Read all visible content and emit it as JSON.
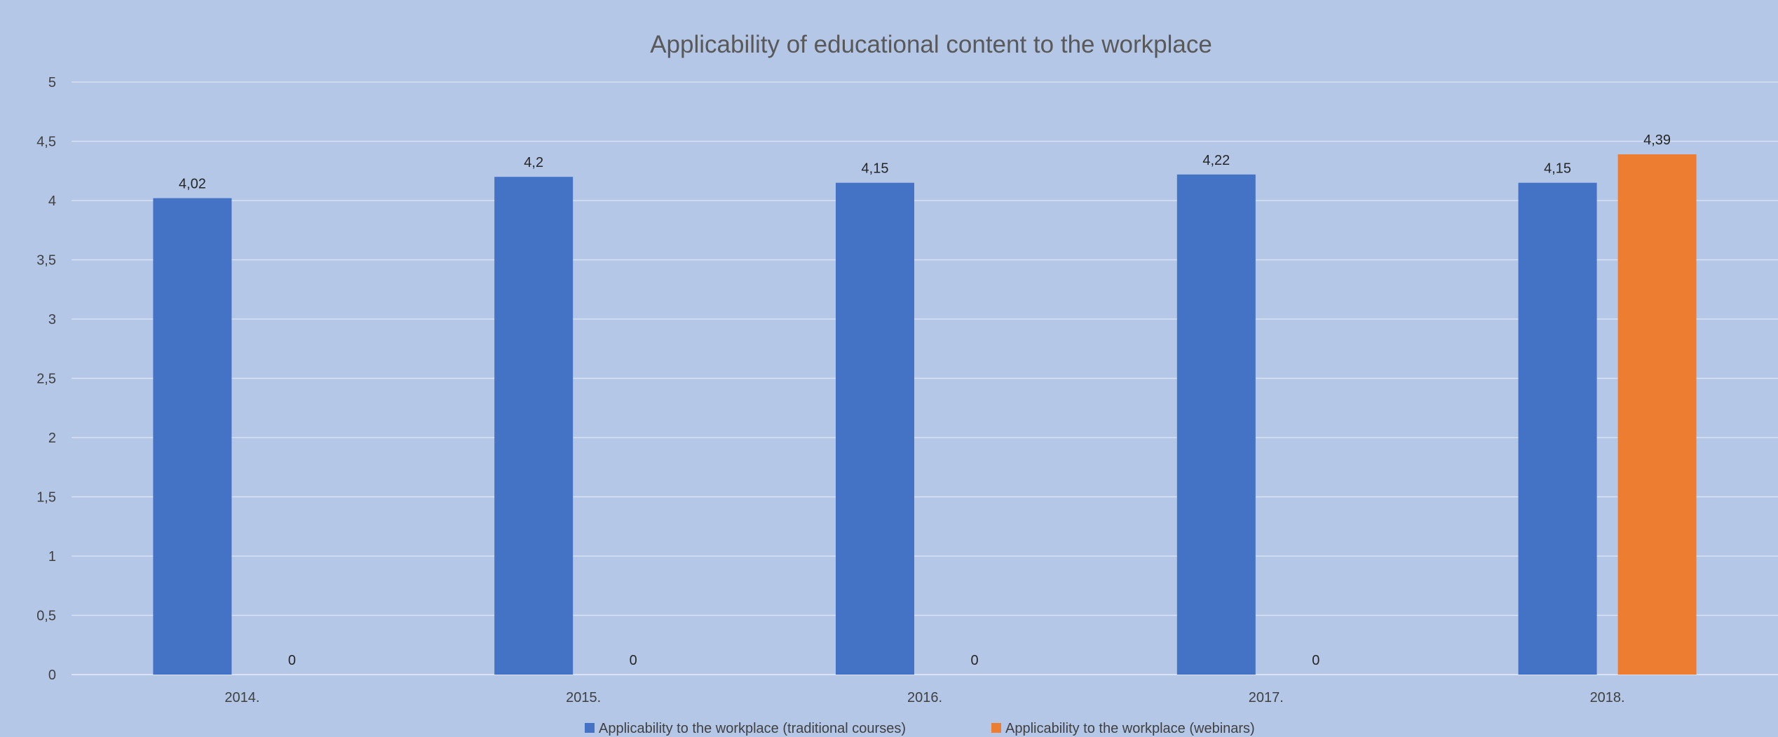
{
  "chart_data": {
    "type": "bar",
    "title": "Applicability of educational content to the workplace",
    "xlabel": "",
    "ylabel": "",
    "categories": [
      "2014.",
      "2015.",
      "2016.",
      "2017.",
      "2018."
    ],
    "series": [
      {
        "name": "Applicability to the workplace (traditional courses)",
        "color": "#4472c4",
        "values": [
          4.02,
          4.2,
          4.15,
          4.22,
          4.15
        ],
        "labels": [
          "4,02",
          "4,2",
          "4,15",
          "4,22",
          "4,15"
        ]
      },
      {
        "name": "Applicability to the workplace (webinars)",
        "color": "#ed7d31",
        "values": [
          0,
          0,
          0,
          0,
          4.39
        ],
        "labels": [
          "0",
          "0",
          "0",
          "0",
          "4,39"
        ]
      }
    ],
    "ylim": [
      0,
      5
    ],
    "yticks": [
      0,
      0.5,
      1,
      1.5,
      2,
      2.5,
      3,
      3.5,
      4,
      4.5,
      5
    ],
    "ytick_labels": [
      "0",
      "0,5",
      "1",
      "1,5",
      "2",
      "2,5",
      "3",
      "3,5",
      "4",
      "4,5",
      "5"
    ],
    "grid": true,
    "gridline_color": "#d9e1f2",
    "legend_position": "bottom"
  }
}
